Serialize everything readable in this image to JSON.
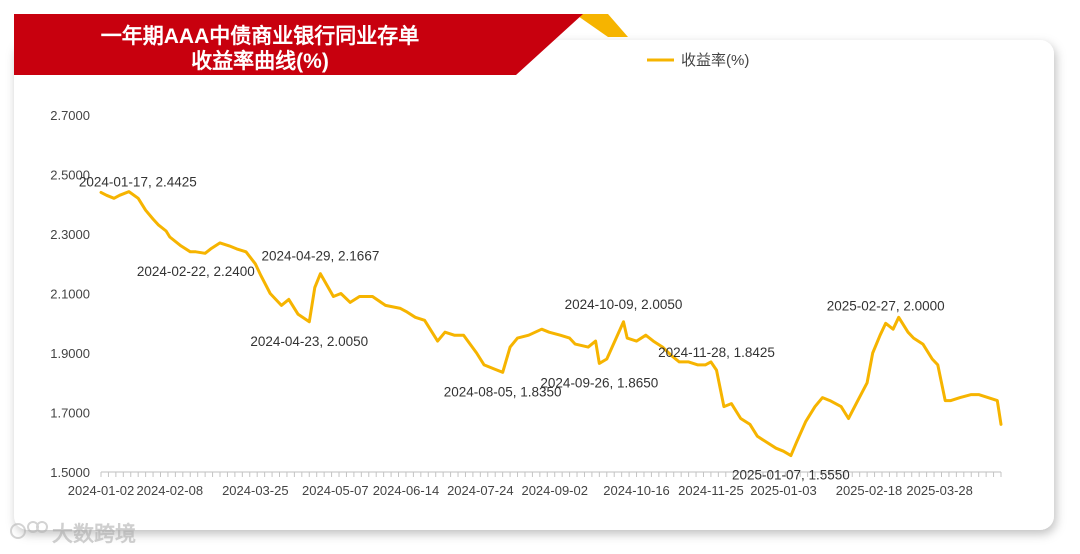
{
  "banner": {
    "title_line1": "一年期AAA中债商业银行同业存单",
    "title_line2": "收益率曲线(%)",
    "bg_color": "#c8000e",
    "accent_color": "#f6b400"
  },
  "watermark": {
    "text": "大数跨境"
  },
  "chart_data": {
    "type": "line",
    "title": "一年期AAA中债商业银行同业存单收益率曲线(%)",
    "xlabel": "",
    "ylabel": "",
    "ylim": [
      1.5,
      2.7
    ],
    "yticks": [
      "1.5000",
      "1.7000",
      "1.9000",
      "2.1000",
      "2.3000",
      "2.5000",
      "2.7000"
    ],
    "xlim": [
      "2024-01-02",
      "2025-04-30"
    ],
    "xticks": [
      "2024-01-02",
      "2024-02-08",
      "2024-03-25",
      "2024-05-07",
      "2024-06-14",
      "2024-07-24",
      "2024-09-02",
      "2024-10-16",
      "2024-11-25",
      "2025-01-03",
      "2025-02-18",
      "2025-03-28"
    ],
    "legend": {
      "position": "top-right"
    },
    "grid": false,
    "series": [
      {
        "name": "收益率(%)",
        "color": "#f6b400",
        "points": [
          [
            "2024-01-02",
            2.44
          ],
          [
            "2024-01-05",
            2.43
          ],
          [
            "2024-01-09",
            2.42
          ],
          [
            "2024-01-12",
            2.43
          ],
          [
            "2024-01-17",
            2.4425
          ],
          [
            "2024-01-22",
            2.42
          ],
          [
            "2024-01-26",
            2.38
          ],
          [
            "2024-01-30",
            2.35
          ],
          [
            "2024-02-02",
            2.33
          ],
          [
            "2024-02-06",
            2.31
          ],
          [
            "2024-02-08",
            2.29
          ],
          [
            "2024-02-14",
            2.26
          ],
          [
            "2024-02-19",
            2.24
          ],
          [
            "2024-02-22",
            2.24
          ],
          [
            "2024-02-27",
            2.235
          ],
          [
            "2024-03-01",
            2.25
          ],
          [
            "2024-03-06",
            2.27
          ],
          [
            "2024-03-11",
            2.26
          ],
          [
            "2024-03-15",
            2.25
          ],
          [
            "2024-03-20",
            2.24
          ],
          [
            "2024-03-25",
            2.2
          ],
          [
            "2024-03-28",
            2.16
          ],
          [
            "2024-04-02",
            2.1
          ],
          [
            "2024-04-08",
            2.06
          ],
          [
            "2024-04-12",
            2.08
          ],
          [
            "2024-04-17",
            2.03
          ],
          [
            "2024-04-23",
            2.005
          ],
          [
            "2024-04-26",
            2.12
          ],
          [
            "2024-04-29",
            2.1667
          ],
          [
            "2024-05-06",
            2.09
          ],
          [
            "2024-05-10",
            2.1
          ],
          [
            "2024-05-15",
            2.07
          ],
          [
            "2024-05-20",
            2.09
          ],
          [
            "2024-05-27",
            2.09
          ],
          [
            "2024-06-03",
            2.06
          ],
          [
            "2024-06-11",
            2.05
          ],
          [
            "2024-06-14",
            2.04
          ],
          [
            "2024-06-19",
            2.02
          ],
          [
            "2024-06-24",
            2.01
          ],
          [
            "2024-07-01",
            1.94
          ],
          [
            "2024-07-05",
            1.97
          ],
          [
            "2024-07-10",
            1.96
          ],
          [
            "2024-07-15",
            1.96
          ],
          [
            "2024-07-22",
            1.9
          ],
          [
            "2024-07-26",
            1.86
          ],
          [
            "2024-08-01",
            1.845
          ],
          [
            "2024-08-05",
            1.835
          ],
          [
            "2024-08-09",
            1.92
          ],
          [
            "2024-08-13",
            1.95
          ],
          [
            "2024-08-19",
            1.96
          ],
          [
            "2024-08-26",
            1.98
          ],
          [
            "2024-08-30",
            1.97
          ],
          [
            "2024-09-05",
            1.96
          ],
          [
            "2024-09-10",
            1.95
          ],
          [
            "2024-09-13",
            1.93
          ],
          [
            "2024-09-20",
            1.92
          ],
          [
            "2024-09-24",
            1.94
          ],
          [
            "2024-09-26",
            1.865
          ],
          [
            "2024-09-30",
            1.88
          ],
          [
            "2024-10-09",
            2.005
          ],
          [
            "2024-10-11",
            1.95
          ],
          [
            "2024-10-16",
            1.94
          ],
          [
            "2024-10-21",
            1.96
          ],
          [
            "2024-10-25",
            1.94
          ],
          [
            "2024-10-30",
            1.92
          ],
          [
            "2024-11-04",
            1.89
          ],
          [
            "2024-11-08",
            1.87
          ],
          [
            "2024-11-13",
            1.87
          ],
          [
            "2024-11-18",
            1.86
          ],
          [
            "2024-11-22",
            1.86
          ],
          [
            "2024-11-25",
            1.87
          ],
          [
            "2024-11-28",
            1.8425
          ],
          [
            "2024-12-02",
            1.72
          ],
          [
            "2024-12-06",
            1.73
          ],
          [
            "2024-12-11",
            1.68
          ],
          [
            "2024-12-16",
            1.66
          ],
          [
            "2024-12-20",
            1.62
          ],
          [
            "2024-12-25",
            1.6
          ],
          [
            "2024-12-30",
            1.58
          ],
          [
            "2025-01-03",
            1.57
          ],
          [
            "2025-01-07",
            1.555
          ],
          [
            "2025-01-10",
            1.6
          ],
          [
            "2025-01-15",
            1.67
          ],
          [
            "2025-01-20",
            1.72
          ],
          [
            "2025-01-24",
            1.75
          ],
          [
            "2025-01-28",
            1.74
          ],
          [
            "2025-02-03",
            1.72
          ],
          [
            "2025-02-07",
            1.68
          ],
          [
            "2025-02-12",
            1.74
          ],
          [
            "2025-02-17",
            1.8
          ],
          [
            "2025-02-20",
            1.9
          ],
          [
            "2025-02-24",
            1.96
          ],
          [
            "2025-02-27",
            2.0
          ],
          [
            "2025-03-03",
            1.98
          ],
          [
            "2025-03-06",
            2.02
          ],
          [
            "2025-03-11",
            1.97
          ],
          [
            "2025-03-14",
            1.95
          ],
          [
            "2025-03-19",
            1.93
          ],
          [
            "2025-03-24",
            1.88
          ],
          [
            "2025-03-27",
            1.86
          ],
          [
            "2025-03-31",
            1.74
          ],
          [
            "2025-04-03",
            1.74
          ],
          [
            "2025-04-08",
            1.75
          ],
          [
            "2025-04-14",
            1.76
          ],
          [
            "2025-04-18",
            1.76
          ],
          [
            "2025-04-23",
            1.75
          ],
          [
            "2025-04-28",
            1.74
          ],
          [
            "2025-04-30",
            1.66
          ]
        ]
      }
    ],
    "annotations": [
      {
        "date": "2024-01-17",
        "value": 2.4425,
        "text": "2024-01-17, 2.4425",
        "pos": "above"
      },
      {
        "date": "2024-02-22",
        "value": 2.24,
        "text": "2024-02-22, 2.2400",
        "pos": "below"
      },
      {
        "date": "2024-04-23",
        "value": 2.005,
        "text": "2024-04-23, 2.0050",
        "pos": "below"
      },
      {
        "date": "2024-04-29",
        "value": 2.1667,
        "text": "2024-04-29, 2.1667",
        "pos": "above"
      },
      {
        "date": "2024-08-05",
        "value": 1.835,
        "text": "2024-08-05, 1.8350",
        "pos": "below"
      },
      {
        "date": "2024-09-26",
        "value": 1.865,
        "text": "2024-09-26, 1.8650",
        "pos": "below"
      },
      {
        "date": "2024-10-09",
        "value": 2.005,
        "text": "2024-10-09, 2.0050",
        "pos": "above"
      },
      {
        "date": "2024-11-28",
        "value": 1.8425,
        "text": "2024-11-28, 1.8425",
        "pos": "above"
      },
      {
        "date": "2025-01-07",
        "value": 1.555,
        "text": "2025-01-07, 1.5550",
        "pos": "below"
      },
      {
        "date": "2025-02-27",
        "value": 2.0,
        "text": "2025-02-27, 2.0000",
        "pos": "above"
      }
    ]
  }
}
